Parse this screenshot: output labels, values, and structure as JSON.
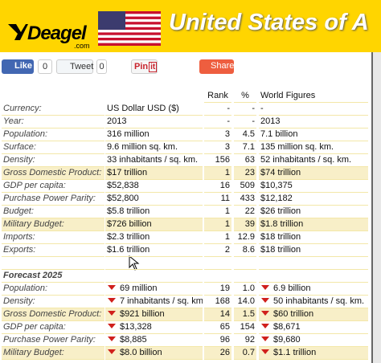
{
  "header": {
    "logo": "Deagel",
    "logo_sub": ".com",
    "title": "United States of A"
  },
  "social": {
    "like": "Like",
    "like_count": "0",
    "tweet": "Tweet",
    "tweet_count": "0",
    "pin": "Pin",
    "pin_it": "it",
    "share": "Share"
  },
  "table": {
    "columns": [
      "Rank",
      "%",
      "World Figures"
    ],
    "rows": [
      {
        "cells": [
          "Currency:",
          "US Dollar USD ($)",
          "-",
          "-",
          "-"
        ]
      },
      {
        "cells": [
          "Year:",
          "2013",
          "-",
          "-",
          "2013"
        ]
      },
      {
        "cells": [
          "Population:",
          "316 million",
          "3",
          "4.5",
          "7.1 billion"
        ]
      },
      {
        "cells": [
          "Surface:",
          "9.6 million sq. km.",
          "3",
          "7.1",
          "135 million sq. km."
        ]
      },
      {
        "cells": [
          "Density:",
          "33 inhabitants / sq. km.",
          "156",
          "63",
          "52 inhabitants / sq. km."
        ]
      },
      {
        "cells": [
          "Gross Domestic Product:",
          "$17 trillion",
          "1",
          "23",
          "$74 trillion"
        ],
        "highlight": true
      },
      {
        "cells": [
          "GDP per capita:",
          "$52,838",
          "16",
          "509",
          "$10,375"
        ]
      },
      {
        "cells": [
          "Purchase Power Parity:",
          "$52,800",
          "11",
          "433",
          "$12,182"
        ]
      },
      {
        "cells": [
          "Budget:",
          "$5.8 trillion",
          "1",
          "22",
          "$26 trillion"
        ]
      },
      {
        "cells": [
          "Military Budget:",
          "$726 billion",
          "1",
          "39",
          "$1.8 trillion"
        ],
        "highlight": true
      },
      {
        "cells": [
          "Imports:",
          "$2.3 trillion",
          "1",
          "12.9",
          "$18 trillion"
        ]
      },
      {
        "cells": [
          "Exports:",
          "$1.6 trillion",
          "2",
          "8.6",
          "$18 trillion"
        ]
      }
    ],
    "forecast_title": "Forecast 2025",
    "forecast_rows": [
      {
        "cells": [
          "Population:",
          "69 million",
          "19",
          "1.0",
          "6.9 billion"
        ]
      },
      {
        "cells": [
          "Density:",
          "7 inhabitants / sq. km.",
          "168",
          "14.0",
          "50 inhabitants / sq. km."
        ]
      },
      {
        "cells": [
          "Gross Domestic Product:",
          "$921 billion",
          "14",
          "1.5",
          "$60 trillion"
        ],
        "highlight": true
      },
      {
        "cells": [
          "GDP per capita:",
          "$13,328",
          "65",
          "154",
          "$8,671"
        ]
      },
      {
        "cells": [
          "Purchase Power Parity:",
          "$8,885",
          "96",
          "92",
          "$9,680"
        ]
      },
      {
        "cells": [
          "Military Budget:",
          "$8.0 billion",
          "26",
          "0.7",
          "$1.1 trillion"
        ],
        "highlight": true
      }
    ]
  }
}
